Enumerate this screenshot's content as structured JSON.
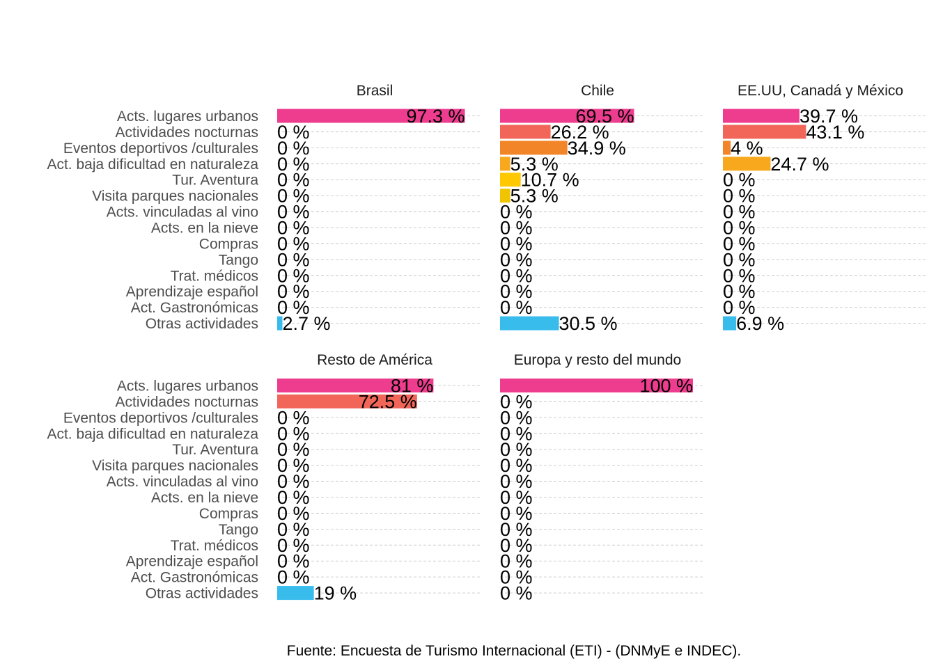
{
  "caption": "Fuente: Encuesta de Turismo Internacional (ETI) - (DNMyE e INDEC).",
  "chart_data": {
    "type": "bar",
    "orientation": "horizontal",
    "facet": true,
    "grid": "horizontal dashed",
    "xlim": [
      0,
      100
    ],
    "categories": [
      "Acts. lugares urbanos",
      "Actividades nocturnas",
      "Eventos deportivos /culturales",
      "Act. baja dificultad en naturaleza",
      "Tur. Aventura",
      "Visita parques nacionales",
      "Acts. vinculadas al vino",
      "Acts. en la nieve",
      "Compras",
      "Tango",
      "Trat. médicos",
      "Aprendizaje español",
      "Act. Gastronómicas",
      "Otras actividades"
    ],
    "colors": [
      "#EE3D8F",
      "#F2665A",
      "#F28527",
      "#F8A81D",
      "#FFC800",
      "#F0C400",
      "#A9C72C",
      "#73BF45",
      "#37B34A",
      "#2DB9A8",
      "#2FB6D8",
      "#38BDEE",
      "#3BBCED",
      "#37BCEC"
    ],
    "panels": [
      {
        "title": "Brasil",
        "values": [
          97.3,
          0,
          0,
          0,
          0,
          0,
          0,
          0,
          0,
          0,
          0,
          0,
          0,
          2.7
        ],
        "labels": [
          "97.3 %",
          "0 %",
          "0 %",
          "0 %",
          "0 %",
          "0 %",
          "0 %",
          "0 %",
          "0 %",
          "0 %",
          "0 %",
          "0 %",
          "0 %",
          "2.7 %"
        ]
      },
      {
        "title": "Chile",
        "values": [
          69.5,
          26.2,
          34.9,
          5.3,
          10.7,
          5.3,
          0,
          0,
          0,
          0,
          0,
          0,
          0,
          30.5
        ],
        "labels": [
          "69.5 %",
          "26.2 %",
          "34.9 %",
          "5.3 %",
          "10.7 %",
          "5.3 %",
          "0 %",
          "0 %",
          "0 %",
          "0 %",
          "0 %",
          "0 %",
          "0 %",
          "30.5 %"
        ]
      },
      {
        "title": "EE.UU, Canadá y México",
        "values": [
          39.7,
          43.1,
          4,
          24.7,
          0,
          0,
          0,
          0,
          0,
          0,
          0,
          0,
          0,
          6.9
        ],
        "labels": [
          "39.7 %",
          "43.1 %",
          "4 %",
          "24.7 %",
          "0 %",
          "0 %",
          "0 %",
          "0 %",
          "0 %",
          "0 %",
          "0 %",
          "0 %",
          "0 %",
          "6.9 %"
        ]
      },
      {
        "title": "Resto de América",
        "values": [
          81,
          72.5,
          0,
          0,
          0,
          0,
          0,
          0,
          0,
          0,
          0,
          0,
          0,
          19
        ],
        "labels": [
          "81 %",
          "72.5 %",
          "0 %",
          "0 %",
          "0 %",
          "0 %",
          "0 %",
          "0 %",
          "0 %",
          "0 %",
          "0 %",
          "0 %",
          "0 %",
          "19 %"
        ]
      },
      {
        "title": "Europa y resto del mundo",
        "values": [
          100,
          0,
          0,
          0,
          0,
          0,
          0,
          0,
          0,
          0,
          0,
          0,
          0,
          0
        ],
        "labels": [
          "100 %",
          "0 %",
          "0 %",
          "0 %",
          "0 %",
          "0 %",
          "0 %",
          "0 %",
          "0 %",
          "0 %",
          "0 %",
          "0 %",
          "0 %",
          "0 %"
        ]
      }
    ]
  }
}
